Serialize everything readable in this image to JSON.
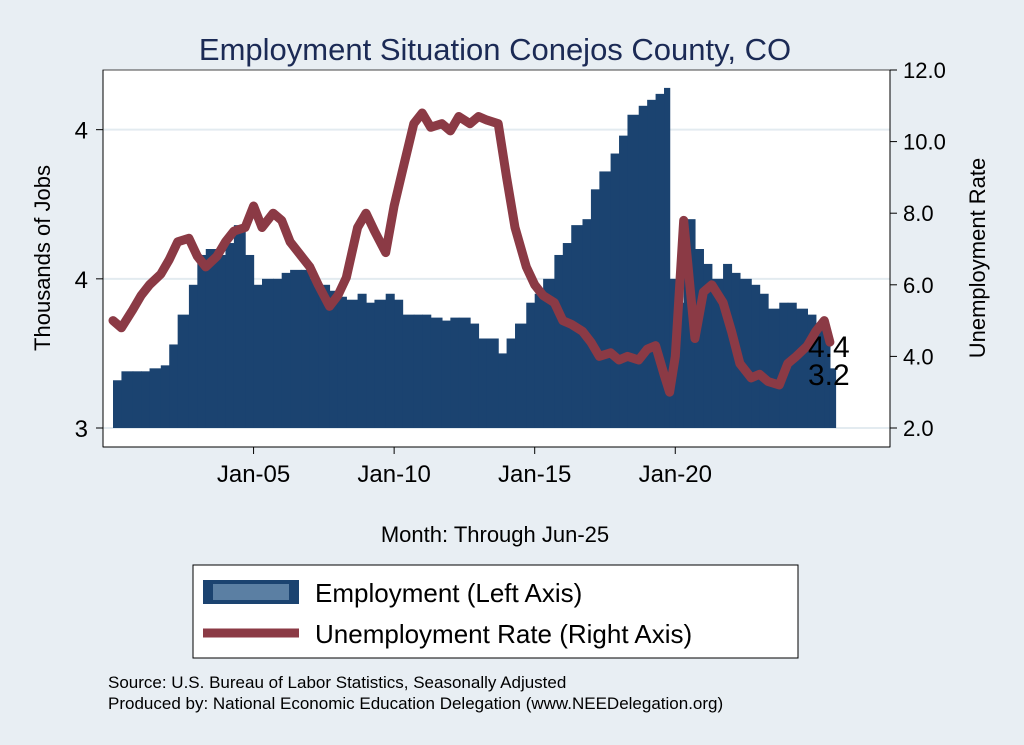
{
  "chart_data": {
    "type": "bar+line",
    "title": "Employment Situation Conejos  County, CO",
    "xlabel": "Month: Through Jun-25",
    "ylabel_left": "Thousands of Jobs",
    "ylabel_right": "Unemployment Rate",
    "x_ticks": [
      {
        "t": 2005.0,
        "label": "Jan-05"
      },
      {
        "t": 2010.0,
        "label": "Jan-10"
      },
      {
        "t": 2015.0,
        "label": "Jan-15"
      },
      {
        "t": 2020.0,
        "label": "Jan-20"
      }
    ],
    "x_range": [
      2000.0,
      2026.5
    ],
    "y_left_range": [
      3.0,
      4.2
    ],
    "y_left_ticks": [
      {
        "v": 3.0,
        "label": "3"
      },
      {
        "v": 3.5,
        "label": "4"
      },
      {
        "v": 4.0,
        "label": "4"
      }
    ],
    "y_right_range": [
      2.0,
      12.0
    ],
    "y_right_ticks": [
      {
        "v": 2.0,
        "label": "2.0"
      },
      {
        "v": 4.0,
        "label": "4.0"
      },
      {
        "v": 6.0,
        "label": "6.0"
      },
      {
        "v": 8.0,
        "label": "8.0"
      },
      {
        "v": 10.0,
        "label": "10.0"
      },
      {
        "v": 12.0,
        "label": "12.0"
      }
    ],
    "end_labels": {
      "unemployment": "4.4",
      "employment": "3.2"
    },
    "employment_series": {
      "name": "Employment (Left Axis)",
      "color": "#1b4370",
      "points": [
        [
          2000.0,
          3.16
        ],
        [
          2000.3,
          3.19
        ],
        [
          2000.7,
          3.19
        ],
        [
          2001.0,
          3.19
        ],
        [
          2001.3,
          3.2
        ],
        [
          2001.7,
          3.21
        ],
        [
          2002.0,
          3.28
        ],
        [
          2002.3,
          3.38
        ],
        [
          2002.7,
          3.48
        ],
        [
          2003.0,
          3.58
        ],
        [
          2003.3,
          3.6
        ],
        [
          2003.7,
          3.58
        ],
        [
          2004.0,
          3.62
        ],
        [
          2004.3,
          3.68
        ],
        [
          2004.7,
          3.58
        ],
        [
          2005.0,
          3.48
        ],
        [
          2005.3,
          3.5
        ],
        [
          2005.7,
          3.5
        ],
        [
          2006.0,
          3.52
        ],
        [
          2006.3,
          3.53
        ],
        [
          2006.7,
          3.53
        ],
        [
          2007.0,
          3.5
        ],
        [
          2007.3,
          3.48
        ],
        [
          2007.7,
          3.46
        ],
        [
          2008.0,
          3.44
        ],
        [
          2008.3,
          3.43
        ],
        [
          2008.7,
          3.45
        ],
        [
          2009.0,
          3.42
        ],
        [
          2009.3,
          3.43
        ],
        [
          2009.7,
          3.45
        ],
        [
          2010.0,
          3.43
        ],
        [
          2010.3,
          3.38
        ],
        [
          2010.7,
          3.38
        ],
        [
          2011.0,
          3.38
        ],
        [
          2011.3,
          3.37
        ],
        [
          2011.7,
          3.36
        ],
        [
          2012.0,
          3.37
        ],
        [
          2012.3,
          3.37
        ],
        [
          2012.7,
          3.35
        ],
        [
          2013.0,
          3.3
        ],
        [
          2013.3,
          3.3
        ],
        [
          2013.7,
          3.25
        ],
        [
          2014.0,
          3.3
        ],
        [
          2014.3,
          3.35
        ],
        [
          2014.7,
          3.42
        ],
        [
          2015.0,
          3.45
        ],
        [
          2015.3,
          3.5
        ],
        [
          2015.7,
          3.58
        ],
        [
          2016.0,
          3.62
        ],
        [
          2016.3,
          3.68
        ],
        [
          2016.7,
          3.7
        ],
        [
          2017.0,
          3.8
        ],
        [
          2017.3,
          3.86
        ],
        [
          2017.7,
          3.92
        ],
        [
          2018.0,
          3.98
        ],
        [
          2018.3,
          4.05
        ],
        [
          2018.7,
          4.08
        ],
        [
          2019.0,
          4.1
        ],
        [
          2019.3,
          4.12
        ],
        [
          2019.6,
          4.14
        ],
        [
          2019.8,
          3.5
        ],
        [
          2020.0,
          3.42
        ],
        [
          2020.3,
          3.7
        ],
        [
          2020.7,
          3.6
        ],
        [
          2021.0,
          3.55
        ],
        [
          2021.3,
          3.5
        ],
        [
          2021.7,
          3.55
        ],
        [
          2022.0,
          3.52
        ],
        [
          2022.3,
          3.5
        ],
        [
          2022.7,
          3.48
        ],
        [
          2023.0,
          3.45
        ],
        [
          2023.3,
          3.4
        ],
        [
          2023.7,
          3.42
        ],
        [
          2024.0,
          3.42
        ],
        [
          2024.3,
          3.4
        ],
        [
          2024.7,
          3.38
        ],
        [
          2025.0,
          3.35
        ],
        [
          2025.3,
          3.3
        ],
        [
          2025.5,
          3.2
        ]
      ]
    },
    "unemployment_series": {
      "name": "Unemployment Rate (Right Axis)",
      "color": "#8b3a45",
      "points": [
        [
          2000.0,
          5.0
        ],
        [
          2000.3,
          4.8
        ],
        [
          2000.7,
          5.3
        ],
        [
          2001.0,
          5.7
        ],
        [
          2001.3,
          6.0
        ],
        [
          2001.7,
          6.3
        ],
        [
          2002.0,
          6.7
        ],
        [
          2002.3,
          7.2
        ],
        [
          2002.7,
          7.3
        ],
        [
          2003.0,
          6.8
        ],
        [
          2003.3,
          6.5
        ],
        [
          2003.7,
          6.8
        ],
        [
          2004.0,
          7.2
        ],
        [
          2004.3,
          7.5
        ],
        [
          2004.7,
          7.6
        ],
        [
          2005.0,
          8.2
        ],
        [
          2005.3,
          7.6
        ],
        [
          2005.7,
          8.0
        ],
        [
          2006.0,
          7.8
        ],
        [
          2006.3,
          7.2
        ],
        [
          2006.7,
          6.8
        ],
        [
          2007.0,
          6.5
        ],
        [
          2007.3,
          6.0
        ],
        [
          2007.7,
          5.4
        ],
        [
          2008.0,
          5.7
        ],
        [
          2008.3,
          6.2
        ],
        [
          2008.7,
          7.6
        ],
        [
          2009.0,
          8.0
        ],
        [
          2009.3,
          7.5
        ],
        [
          2009.7,
          6.9
        ],
        [
          2010.0,
          8.2
        ],
        [
          2010.3,
          9.2
        ],
        [
          2010.7,
          10.5
        ],
        [
          2011.0,
          10.8
        ],
        [
          2011.3,
          10.4
        ],
        [
          2011.7,
          10.5
        ],
        [
          2012.0,
          10.3
        ],
        [
          2012.3,
          10.7
        ],
        [
          2012.7,
          10.5
        ],
        [
          2013.0,
          10.7
        ],
        [
          2013.3,
          10.6
        ],
        [
          2013.7,
          10.5
        ],
        [
          2014.0,
          9.0
        ],
        [
          2014.3,
          7.6
        ],
        [
          2014.7,
          6.5
        ],
        [
          2015.0,
          6.0
        ],
        [
          2015.3,
          5.7
        ],
        [
          2015.7,
          5.5
        ],
        [
          2016.0,
          5.0
        ],
        [
          2016.3,
          4.9
        ],
        [
          2016.7,
          4.7
        ],
        [
          2017.0,
          4.4
        ],
        [
          2017.3,
          4.0
        ],
        [
          2017.7,
          4.1
        ],
        [
          2018.0,
          3.9
        ],
        [
          2018.3,
          4.0
        ],
        [
          2018.7,
          3.9
        ],
        [
          2019.0,
          4.2
        ],
        [
          2019.3,
          4.3
        ],
        [
          2019.6,
          3.5
        ],
        [
          2019.8,
          3.0
        ],
        [
          2020.0,
          4.0
        ],
        [
          2020.3,
          7.8
        ],
        [
          2020.7,
          4.5
        ],
        [
          2021.0,
          5.8
        ],
        [
          2021.3,
          6.0
        ],
        [
          2021.7,
          5.5
        ],
        [
          2022.0,
          4.7
        ],
        [
          2022.3,
          3.8
        ],
        [
          2022.7,
          3.4
        ],
        [
          2023.0,
          3.5
        ],
        [
          2023.3,
          3.3
        ],
        [
          2023.7,
          3.2
        ],
        [
          2024.0,
          3.8
        ],
        [
          2024.3,
          4.0
        ],
        [
          2024.7,
          4.3
        ],
        [
          2025.0,
          4.7
        ],
        [
          2025.3,
          5.0
        ],
        [
          2025.5,
          4.4
        ]
      ]
    },
    "legend": [
      {
        "label": "Employment (Left Axis)",
        "kind": "bar"
      },
      {
        "label": "Unemployment Rate (Right Axis)",
        "kind": "line"
      }
    ]
  },
  "source": {
    "line1": "Source: U.S. Bureau of Labor Statistics, Seasonally Adjusted",
    "line2": "Produced by: National Economic Education Delegation (www.NEEDelegation.org)"
  }
}
